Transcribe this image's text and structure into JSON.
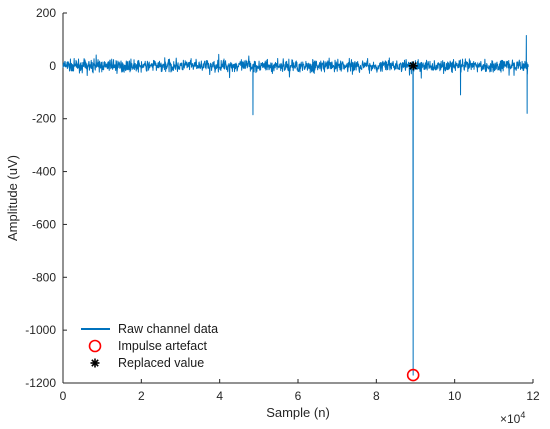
{
  "chart_data": {
    "type": "line",
    "xlabel": "Sample (n)",
    "ylabel": "Amplitude (uV)",
    "x_exponent_base": "×10",
    "x_exponent_power": "4",
    "xlim": [
      0,
      120000
    ],
    "ylim": [
      -1200,
      200
    ],
    "x_ticks": [
      0,
      20000,
      40000,
      60000,
      80000,
      100000,
      120000
    ],
    "x_tick_labels": [
      "0",
      "2",
      "4",
      "6",
      "8",
      "10",
      "12"
    ],
    "y_ticks": [
      200,
      0,
      -200,
      -400,
      -600,
      -800,
      -1000,
      -1200
    ],
    "y_tick_labels": [
      "200",
      "0",
      "-200",
      "-400",
      "-600",
      "-800",
      "-1000",
      "-1200"
    ],
    "grid": false,
    "legend_position": "bottom-left",
    "colors": {
      "raw": "#0072BD",
      "impulse": "#FF0000",
      "replaced": "#000000"
    },
    "series": [
      {
        "name": "Raw channel data",
        "kind": "noisy-line",
        "baseline": 0,
        "noise_amplitude": 25,
        "spikes": [
          {
            "x": 48500,
            "y": -185
          },
          {
            "x": 89400,
            "y": -1170
          },
          {
            "x": 101500,
            "y": -110
          },
          {
            "x": 118500,
            "y": -180
          },
          {
            "x": 118300,
            "y": 115
          }
        ]
      },
      {
        "name": "Impulse artefact",
        "kind": "marker-circle",
        "points": [
          {
            "x": 89400,
            "y": -1170
          }
        ]
      },
      {
        "name": "Replaced value",
        "kind": "marker-asterisk",
        "points": [
          {
            "x": 89400,
            "y": 0
          }
        ]
      }
    ]
  }
}
